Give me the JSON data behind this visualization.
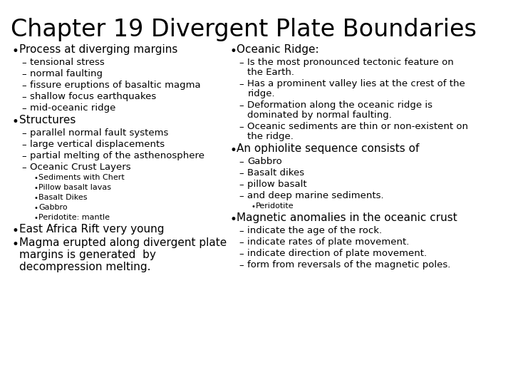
{
  "title": "Chapter 19 Divergent Plate Boundaries",
  "title_fontsize": 24,
  "title_font": "DejaVu Sans",
  "bg_color": "#ffffff",
  "text_color": "#000000",
  "left_column": [
    {
      "type": "bullet",
      "level": 0,
      "text": "Process at diverging margins"
    },
    {
      "type": "bullet",
      "level": 1,
      "text": "tensional stress"
    },
    {
      "type": "bullet",
      "level": 1,
      "text": "normal faulting"
    },
    {
      "type": "bullet",
      "level": 1,
      "text": "fissure eruptions of basaltic magma"
    },
    {
      "type": "bullet",
      "level": 1,
      "text": "shallow focus earthquakes"
    },
    {
      "type": "bullet",
      "level": 1,
      "text": "mid-oceanic ridge"
    },
    {
      "type": "bullet",
      "level": 0,
      "text": "Structures"
    },
    {
      "type": "bullet",
      "level": 1,
      "text": "parallel normal fault systems"
    },
    {
      "type": "bullet",
      "level": 1,
      "text": "large vertical displacements"
    },
    {
      "type": "bullet",
      "level": 1,
      "text": "partial melting of the asthenosphere"
    },
    {
      "type": "bullet",
      "level": 1,
      "text": "Oceanic Crust Layers"
    },
    {
      "type": "bullet",
      "level": 2,
      "text": "Sediments with Chert"
    },
    {
      "type": "bullet",
      "level": 2,
      "text": "Pillow basalt lavas"
    },
    {
      "type": "bullet",
      "level": 2,
      "text": "Basalt Dikes"
    },
    {
      "type": "bullet",
      "level": 2,
      "text": "Gabbro"
    },
    {
      "type": "bullet",
      "level": 2,
      "text": "Peridotite: mantle"
    },
    {
      "type": "bullet",
      "level": 0,
      "text": "East Africa Rift very young"
    },
    {
      "type": "bullet",
      "level": 0,
      "text": "Magma erupted along divergent plate\nmargins is generated  by\ndecompression melting."
    }
  ],
  "right_column": [
    {
      "type": "bullet",
      "level": 0,
      "text": "Oceanic Ridge:"
    },
    {
      "type": "bullet",
      "level": 1,
      "text": "Is the most pronounced tectonic feature on\nthe Earth."
    },
    {
      "type": "bullet",
      "level": 1,
      "text": "Has a prominent valley lies at the crest of the\nridge."
    },
    {
      "type": "bullet",
      "level": 1,
      "text": "Deformation along the oceanic ridge is\ndominated by normal faulting."
    },
    {
      "type": "bullet",
      "level": 1,
      "text": "Oceanic sediments are thin or non-existent on\nthe ridge."
    },
    {
      "type": "bullet",
      "level": 0,
      "text": "An ophiolite sequence consists of"
    },
    {
      "type": "bullet",
      "level": 1,
      "text": "Gabbro"
    },
    {
      "type": "bullet",
      "level": 1,
      "text": "Basalt dikes"
    },
    {
      "type": "bullet",
      "level": 1,
      "text": "pillow basalt"
    },
    {
      "type": "bullet",
      "level": 1,
      "text": "and deep marine sediments."
    },
    {
      "type": "bullet",
      "level": 2,
      "text": "Peridotite"
    },
    {
      "type": "bullet",
      "level": 0,
      "text": "Magnetic anomalies in the oceanic crust"
    },
    {
      "type": "bullet",
      "level": 1,
      "text": "indicate the age of the rock."
    },
    {
      "type": "bullet",
      "level": 1,
      "text": "indicate rates of plate movement."
    },
    {
      "type": "bullet",
      "level": 1,
      "text": "indicate direction of plate movement."
    },
    {
      "type": "bullet",
      "level": 1,
      "text": "form from reversals of the magnetic poles."
    }
  ]
}
